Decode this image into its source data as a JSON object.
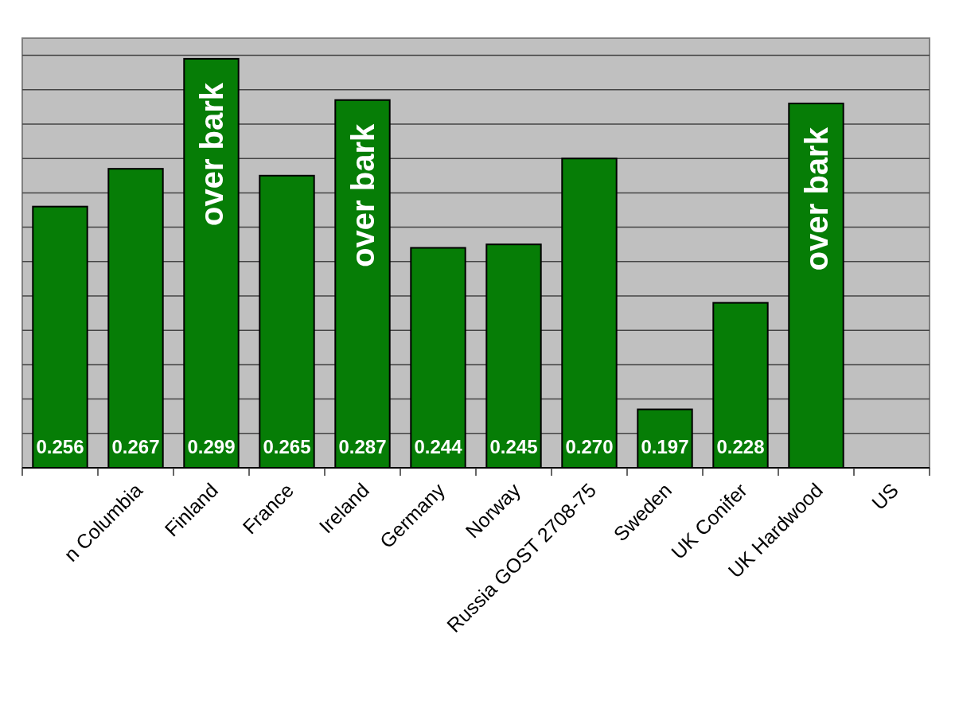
{
  "chart_data": {
    "type": "bar",
    "categories": [
      null,
      "n Columbia",
      "Finland",
      "France",
      "Ireland",
      "Germany",
      "Norway",
      "Russia GOST 2708-75",
      "Sweden",
      "UK Conifer",
      "UK Hardwood",
      "US"
    ],
    "values": [
      0.256,
      0.267,
      0.299,
      0.265,
      0.287,
      0.244,
      0.245,
      0.27,
      0.197,
      0.228,
      0.286,
      null
    ],
    "value_labels": [
      "0.256",
      "0.267",
      "0.299",
      "0.265",
      "0.287",
      "0.244",
      "0.245",
      "0.270",
      "0.197",
      "0.228",
      null,
      null
    ],
    "color": "#067d06",
    "ylim": [
      0.18,
      0.305
    ],
    "yticks": [
      {
        "value": 0.19,
        "label": null
      },
      {
        "value": 0.2,
        "label": null
      },
      {
        "value": 0.21,
        "label": null
      },
      {
        "value": 0.22,
        "label": null
      },
      {
        "value": 0.23,
        "label": null
      },
      {
        "value": 0.24,
        "label": null
      },
      {
        "value": 0.25,
        "label": null
      },
      {
        "value": 0.26,
        "label": null
      },
      {
        "value": 0.27,
        "label": null
      },
      {
        "value": 0.28,
        "label": null
      },
      {
        "value": 0.29,
        "label": null
      },
      {
        "value": 0.3,
        "label": null
      }
    ],
    "grid": "y",
    "annotations": [
      {
        "text": "over bark",
        "x": "Finland",
        "y": 0.299
      },
      {
        "text": "over bark",
        "x": "Ireland",
        "y": 0.287
      },
      {
        "text": "over bark",
        "x": "UK Hardwood",
        "y": 0.286
      }
    ]
  }
}
